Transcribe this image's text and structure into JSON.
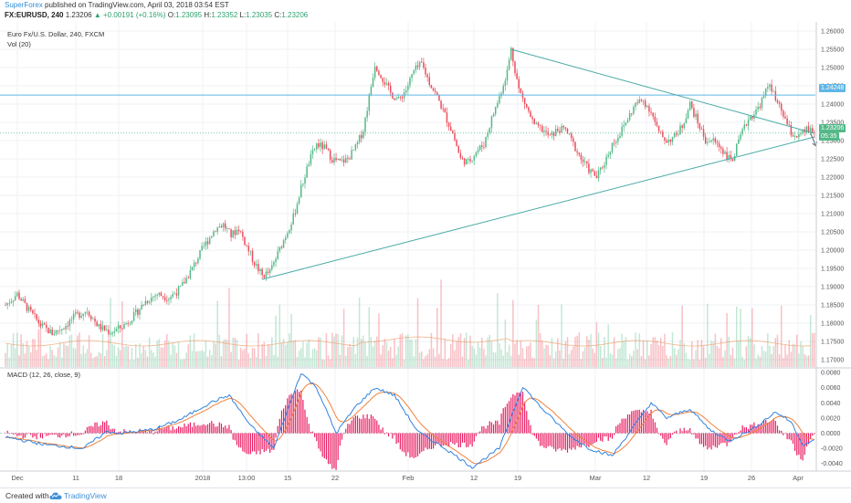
{
  "header": {
    "publisher": "SuperForex",
    "published_text": "published on TradingView.com, April 03, 2018 03:54 EST",
    "symbol": "FX:EURUSD, 240",
    "last": "1.23206",
    "change": "▲ +0.00191 (+0.16%)",
    "o_label": "O:",
    "o_value": "1.23095",
    "h_label": "H:",
    "h_value": "1.23352",
    "l_label": "L:",
    "l_value": "1.23035",
    "c_label": "C:",
    "c_value": "1.23206"
  },
  "main_pane": {
    "title": "Euro Fx/U.S. Dollar, 240, FXCM",
    "volume_label": "Vol (20)",
    "price_axis": [
      "1.26000",
      "1.25500",
      "1.25000",
      "1.24500",
      "1.24000",
      "1.23500",
      "1.23000",
      "1.22500",
      "1.22000",
      "1.21500",
      "1.21000",
      "1.20500",
      "1.20000",
      "1.19500",
      "1.19000",
      "1.18500",
      "1.18000",
      "1.17500",
      "1.17000"
    ],
    "horizontal_line_tag": "1.24248",
    "price_tag": "1.23206",
    "countdown_tag": "05:35"
  },
  "macd_pane": {
    "label": "MACD (12, 26, close, 9)",
    "axis": [
      "0.0080",
      "0.0060",
      "0.0040",
      "0.0020",
      "0.0000",
      "-0.0020",
      "-0.0040"
    ]
  },
  "time_axis": [
    "Dec",
    "11",
    "18",
    "2018",
    "13:00",
    "15",
    "22",
    "Feb",
    "12",
    "19",
    "Mar",
    "12",
    "19",
    "26",
    "Apr"
  ],
  "footer": {
    "created_with": "Created with",
    "brand": "TradingView"
  },
  "colors": {
    "up": "#53b987",
    "down": "#eb4d5c",
    "trendline": "#48a9a6",
    "hline": "#5fb6e6",
    "macd": "#3183e0",
    "signal": "#f0823c",
    "hist": "#e91e63",
    "price_tag": "#53b987",
    "hline_tag": "#5fb6e6"
  },
  "chart_data": {
    "type": "candlestick",
    "symbol": "FX:EURUSD",
    "timeframe": "240",
    "x": [
      "Dec",
      "11",
      "18",
      "2018",
      "13:00",
      "15",
      "22",
      "Feb",
      "12",
      "19",
      "Mar",
      "12",
      "19",
      "26",
      "Apr"
    ],
    "anchors": [
      [
        0,
        1.185
      ],
      [
        6,
        1.188
      ],
      [
        12,
        1.1835
      ],
      [
        18,
        1.1795
      ],
      [
        24,
        1.1772
      ],
      [
        30,
        1.179
      ],
      [
        36,
        1.182
      ],
      [
        42,
        1.1835
      ],
      [
        48,
        1.179
      ],
      [
        54,
        1.1775
      ],
      [
        60,
        1.179
      ],
      [
        66,
        1.182
      ],
      [
        72,
        1.186
      ],
      [
        78,
        1.188
      ],
      [
        84,
        1.187
      ],
      [
        90,
        1.1895
      ],
      [
        96,
        1.195
      ],
      [
        102,
        1.201
      ],
      [
        108,
        1.206
      ],
      [
        112,
        1.207
      ],
      [
        116,
        1.204
      ],
      [
        120,
        1.206
      ],
      [
        124,
        1.201
      ],
      [
        128,
        1.1965
      ],
      [
        132,
        1.193
      ],
      [
        136,
        1.194
      ],
      [
        140,
        1.199
      ],
      [
        144,
        1.204
      ],
      [
        148,
        1.209
      ],
      [
        152,
        1.217
      ],
      [
        156,
        1.224
      ],
      [
        160,
        1.229
      ],
      [
        164,
        1.228
      ],
      [
        168,
        1.225
      ],
      [
        172,
        1.224
      ],
      [
        176,
        1.225
      ],
      [
        180,
        1.228
      ],
      [
        184,
        1.233
      ],
      [
        186,
        1.239
      ],
      [
        188,
        1.245
      ],
      [
        190,
        1.251
      ],
      [
        194,
        1.247
      ],
      [
        198,
        1.243
      ],
      [
        202,
        1.241
      ],
      [
        206,
        1.244
      ],
      [
        210,
        1.249
      ],
      [
        214,
        1.251
      ],
      [
        218,
        1.246
      ],
      [
        222,
        1.242
      ],
      [
        226,
        1.237
      ],
      [
        230,
        1.232
      ],
      [
        234,
        1.225
      ],
      [
        238,
        1.224
      ],
      [
        242,
        1.227
      ],
      [
        246,
        1.229
      ],
      [
        250,
        1.236
      ],
      [
        254,
        1.242
      ],
      [
        258,
        1.249
      ],
      [
        260,
        1.255
      ],
      [
        264,
        1.244
      ],
      [
        268,
        1.239
      ],
      [
        272,
        1.234
      ],
      [
        276,
        1.233
      ],
      [
        280,
        1.231
      ],
      [
        284,
        1.233
      ],
      [
        288,
        1.233
      ],
      [
        292,
        1.229
      ],
      [
        296,
        1.225
      ],
      [
        300,
        1.222
      ],
      [
        304,
        1.22
      ],
      [
        308,
        1.224
      ],
      [
        312,
        1.229
      ],
      [
        316,
        1.232
      ],
      [
        320,
        1.236
      ],
      [
        324,
        1.24
      ],
      [
        328,
        1.241
      ],
      [
        332,
        1.238
      ],
      [
        336,
        1.232
      ],
      [
        340,
        1.23
      ],
      [
        344,
        1.231
      ],
      [
        348,
        1.234
      ],
      [
        352,
        1.24
      ],
      [
        356,
        1.235
      ],
      [
        360,
        1.23
      ],
      [
        364,
        1.23
      ],
      [
        368,
        1.228
      ],
      [
        372,
        1.225
      ],
      [
        374,
        1.225
      ],
      [
        378,
        1.231
      ],
      [
        382,
        1.236
      ],
      [
        386,
        1.238
      ],
      [
        390,
        1.242
      ],
      [
        393,
        1.246
      ],
      [
        396,
        1.241
      ],
      [
        400,
        1.237
      ],
      [
        404,
        1.232
      ],
      [
        408,
        1.231
      ],
      [
        412,
        1.233
      ],
      [
        416,
        1.232
      ]
    ],
    "ylim": [
      1.168,
      1.262
    ],
    "horizontal_levels": [
      1.24248,
      1.23206
    ],
    "trendlines": [
      {
        "from": [
          132,
          1.192
        ],
        "to": [
          416,
          1.231
        ]
      },
      {
        "from": [
          260,
          1.255
        ],
        "to": [
          416,
          1.232
        ]
      }
    ],
    "macd": {
      "label": "MACD (12, 26, close, 9)",
      "anchors": [
        [
          0,
          -0.0005
        ],
        [
          20,
          -0.0015
        ],
        [
          40,
          -0.002
        ],
        [
          52,
          0.0002
        ],
        [
          60,
          0.0
        ],
        [
          76,
          0.0005
        ],
        [
          90,
          0.0018
        ],
        [
          105,
          0.004
        ],
        [
          115,
          0.005
        ],
        [
          126,
          0.001
        ],
        [
          138,
          -0.002
        ],
        [
          152,
          0.008
        ],
        [
          160,
          0.006
        ],
        [
          170,
          0.0
        ],
        [
          180,
          0.0035
        ],
        [
          190,
          0.006
        ],
        [
          200,
          0.005
        ],
        [
          212,
          0.0002
        ],
        [
          226,
          -0.002
        ],
        [
          240,
          -0.0045
        ],
        [
          254,
          -0.002
        ],
        [
          266,
          0.0062
        ],
        [
          275,
          0.0035
        ],
        [
          290,
          -0.0003
        ],
        [
          300,
          -0.002
        ],
        [
          312,
          -0.003
        ],
        [
          322,
          0.0005
        ],
        [
          332,
          0.004
        ],
        [
          340,
          0.002
        ],
        [
          352,
          0.0032
        ],
        [
          362,
          0.0005
        ],
        [
          372,
          -0.001
        ],
        [
          384,
          0.0005
        ],
        [
          396,
          0.0028
        ],
        [
          404,
          0.0015
        ],
        [
          410,
          -0.0015
        ],
        [
          416,
          -0.001
        ]
      ],
      "ylim": [
        -0.005,
        0.0085
      ]
    }
  }
}
